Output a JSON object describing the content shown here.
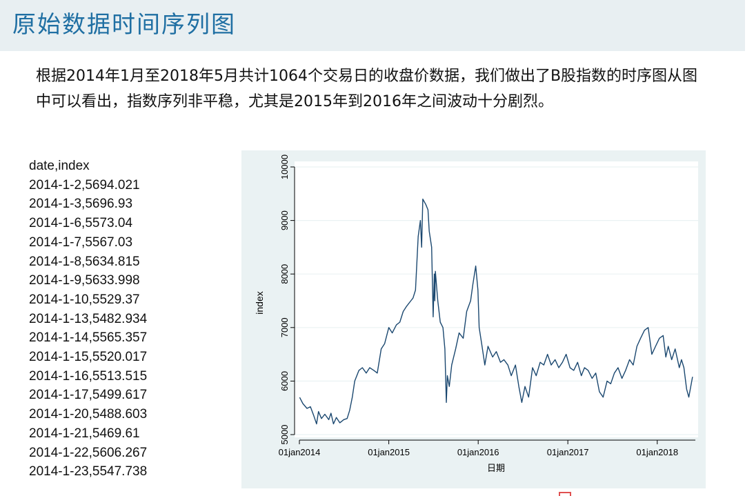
{
  "header": {
    "title": "原始数据时间序列图"
  },
  "description": "根据2014年1月至2018年5月共计1064个交易日的收盘价数据，我们做出了B股指数的时序图从图中可以看出，指数序列非平稳，尤其是2015年到2016年之间波动十分剧烈。",
  "data_table": {
    "header": "date,index",
    "rows": [
      "2014-1-2,5694.021",
      "2014-1-3,5696.93",
      "2014-1-6,5573.04",
      "2014-1-7,5567.03",
      "2014-1-8,5634.815",
      "2014-1-9,5633.998",
      "2014-1-10,5529.37",
      "2014-1-13,5482.934",
      "2014-1-14,5565.357",
      "2014-1-15,5520.017",
      "2014-1-16,5513.515",
      "2014-1-17,5499.617",
      "2014-1-20,5488.603",
      "2014-1-21,5469.61",
      "2014-1-22,5606.267",
      "2014-1-23,5547.738"
    ]
  },
  "chart_data": {
    "type": "line",
    "title": "",
    "xlabel": "日期",
    "ylabel": "index",
    "xlim": [
      "2014-01-01",
      "2018-05-31"
    ],
    "ylim": [
      5000,
      10000
    ],
    "x_ticks": [
      {
        "date": "2014-01-01",
        "label": "01jan2014"
      },
      {
        "date": "2015-01-01",
        "label": "01jan2015"
      },
      {
        "date": "2016-01-01",
        "label": "01jan2016"
      },
      {
        "date": "2017-01-01",
        "label": "01jan2017"
      },
      {
        "date": "2018-01-01",
        "label": "01jan2018"
      }
    ],
    "y_ticks": [
      {
        "value": 5000,
        "label": "5000"
      },
      {
        "value": 6000,
        "label": "6000"
      },
      {
        "value": 7000,
        "label": "7000"
      },
      {
        "value": 8000,
        "label": "8000"
      },
      {
        "value": 9000,
        "label": "9000"
      },
      {
        "value": 10000,
        "label": "10000"
      }
    ],
    "grid": true,
    "line_color": "#1a476f",
    "series": [
      {
        "x": [
          "2014-01-02",
          "2014-01-15",
          "2014-02-01",
          "2014-02-15",
          "2014-03-01",
          "2014-03-12",
          "2014-03-20",
          "2014-04-01",
          "2014-04-15",
          "2014-05-01",
          "2014-05-10",
          "2014-05-20",
          "2014-06-01",
          "2014-06-15",
          "2014-07-01",
          "2014-07-15",
          "2014-07-25",
          "2014-08-05",
          "2014-08-15",
          "2014-09-01",
          "2014-09-15",
          "2014-10-01",
          "2014-10-15",
          "2014-11-01",
          "2014-11-15",
          "2014-12-01",
          "2014-12-15",
          "2015-01-01",
          "2015-01-15",
          "2015-02-01",
          "2015-02-15",
          "2015-03-01",
          "2015-03-15",
          "2015-04-01",
          "2015-04-10",
          "2015-04-20",
          "2015-05-01",
          "2015-05-10",
          "2015-05-15",
          "2015-05-20",
          "2015-06-01",
          "2015-06-10",
          "2015-06-15",
          "2015-06-25",
          "2015-07-01",
          "2015-07-06",
          "2015-07-08",
          "2015-07-10",
          "2015-07-20",
          "2015-07-30",
          "2015-08-10",
          "2015-08-18",
          "2015-08-24",
          "2015-08-28",
          "2015-09-05",
          "2015-09-15",
          "2015-10-01",
          "2015-10-15",
          "2015-11-01",
          "2015-11-15",
          "2015-12-01",
          "2015-12-10",
          "2015-12-22",
          "2015-12-31",
          "2016-01-05",
          "2016-01-15",
          "2016-01-28",
          "2016-02-10",
          "2016-02-29",
          "2016-03-15",
          "2016-04-01",
          "2016-04-15",
          "2016-05-01",
          "2016-05-15",
          "2016-06-01",
          "2016-06-15",
          "2016-06-27",
          "2016-07-10",
          "2016-07-25",
          "2016-08-10",
          "2016-08-25",
          "2016-09-10",
          "2016-09-25",
          "2016-10-10",
          "2016-10-25",
          "2016-11-10",
          "2016-11-25",
          "2016-12-10",
          "2016-12-25",
          "2017-01-10",
          "2017-01-25",
          "2017-02-10",
          "2017-02-25",
          "2017-03-10",
          "2017-03-25",
          "2017-04-10",
          "2017-04-25",
          "2017-05-10",
          "2017-05-25",
          "2017-06-10",
          "2017-06-25",
          "2017-07-10",
          "2017-07-25",
          "2017-08-10",
          "2017-08-25",
          "2017-09-10",
          "2017-09-25",
          "2017-10-10",
          "2017-10-25",
          "2017-11-10",
          "2017-11-25",
          "2017-12-10",
          "2017-12-25",
          "2018-01-10",
          "2018-01-25",
          "2018-02-05",
          "2018-02-15",
          "2018-03-01",
          "2018-03-15",
          "2018-04-01",
          "2018-04-10",
          "2018-04-20",
          "2018-05-01",
          "2018-05-10",
          "2018-05-25"
        ],
        "values": [
          5694,
          5580,
          5490,
          5520,
          5350,
          5200,
          5430,
          5300,
          5380,
          5280,
          5400,
          5200,
          5320,
          5220,
          5280,
          5300,
          5450,
          5700,
          6000,
          6200,
          6250,
          6150,
          6250,
          6200,
          6150,
          6600,
          6700,
          7000,
          6900,
          7050,
          7100,
          7300,
          7400,
          7500,
          7550,
          7700,
          8700,
          9000,
          8500,
          9400,
          9300,
          9200,
          8800,
          8500,
          7200,
          8000,
          7500,
          8050,
          7500,
          7100,
          7000,
          6600,
          5600,
          6100,
          5900,
          6300,
          6600,
          6900,
          6800,
          7300,
          7500,
          7800,
          8150,
          7700,
          7000,
          6700,
          6300,
          6650,
          6450,
          6550,
          6350,
          6400,
          6300,
          6100,
          6300,
          5900,
          5600,
          5900,
          5700,
          6250,
          6100,
          6350,
          6300,
          6500,
          6300,
          6400,
          6250,
          6350,
          6500,
          6250,
          6200,
          6350,
          6100,
          6250,
          6200,
          6050,
          6150,
          5800,
          5700,
          6000,
          5950,
          6150,
          6250,
          6050,
          6200,
          6400,
          6300,
          6650,
          6800,
          6950,
          7000,
          6500,
          6650,
          6800,
          6850,
          6450,
          6650,
          6400,
          6600,
          6250,
          6400,
          6250,
          5850,
          5700,
          6080
        ]
      }
    ]
  }
}
